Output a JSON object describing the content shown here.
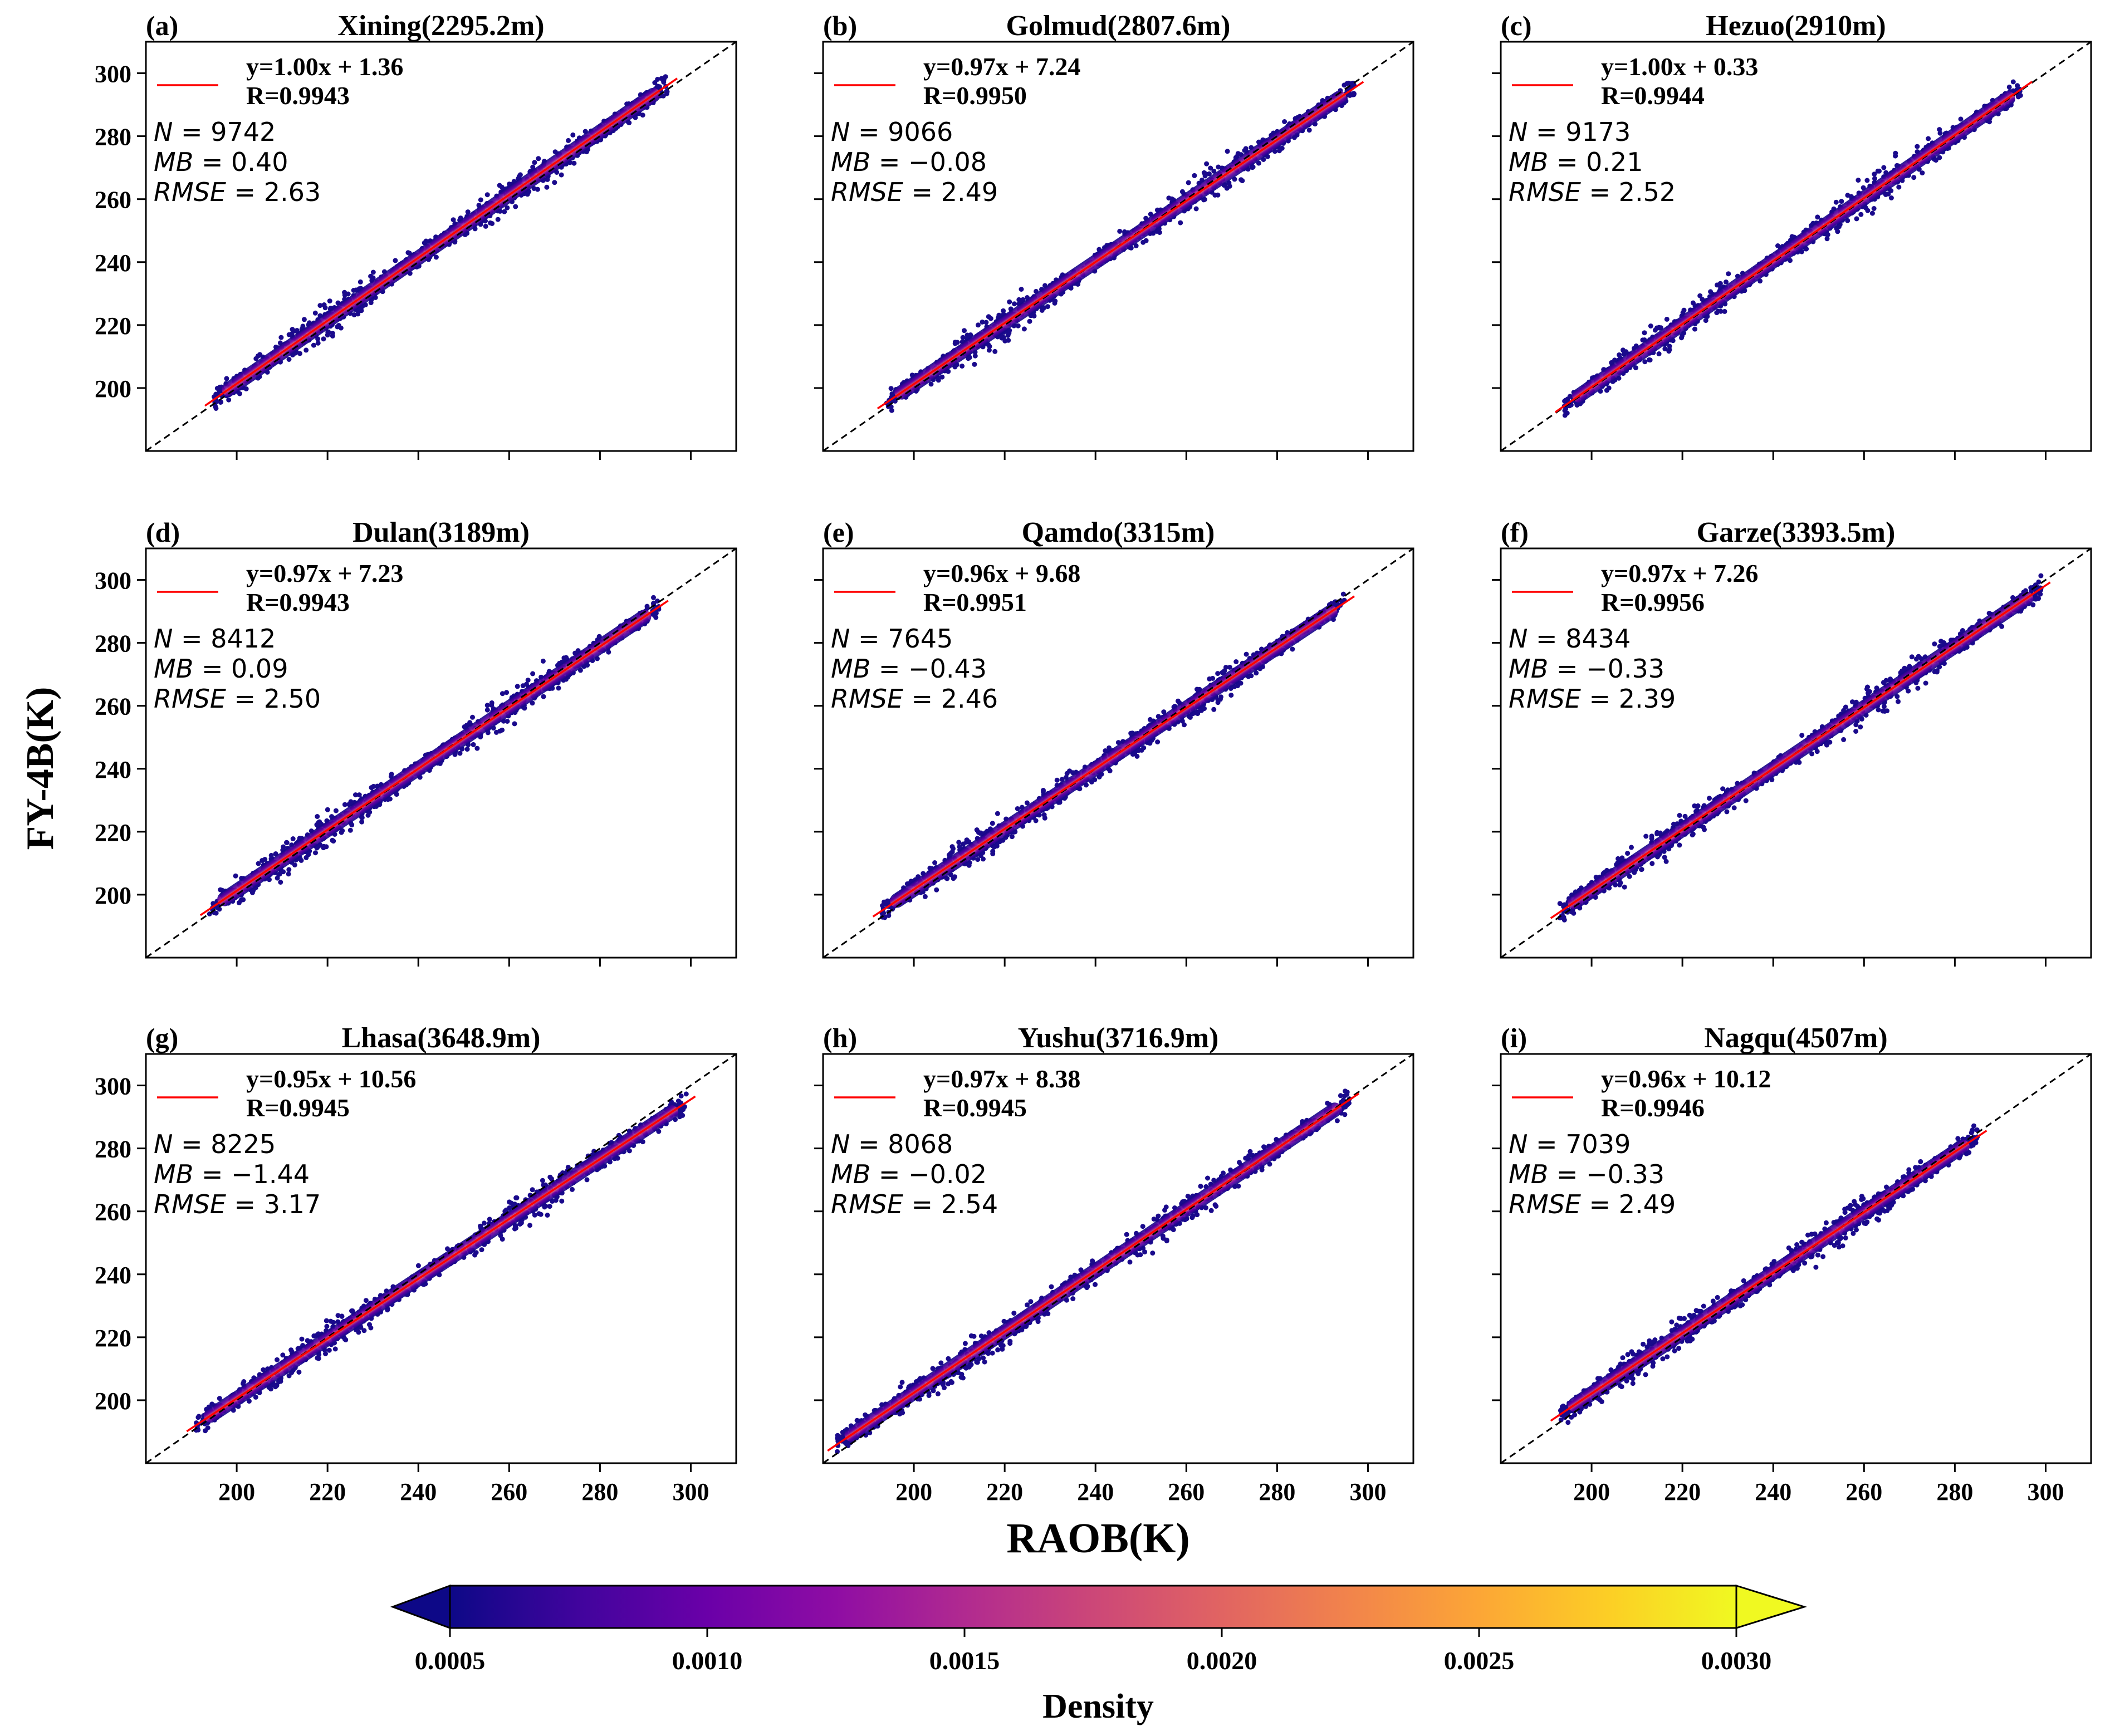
{
  "figure": {
    "y_axis_label": "FY-4B(K)",
    "x_axis_label": "RAOB(K)"
  },
  "colorbar": {
    "label": "Density",
    "colormap": "plasma",
    "range": [
      0.0005,
      0.003
    ],
    "tick_labels": [
      "0.0005",
      "0.0010",
      "0.0015",
      "0.0020",
      "0.0025",
      "0.0030"
    ],
    "extend": "both"
  },
  "chart_data": [
    {
      "type": "scatter",
      "panel": "(a)",
      "title": "Xining(2295.2m)",
      "equation": "y=1.00x + 1.36",
      "r_text": "R=0.9943",
      "n_value": "9742",
      "mb_value": "0.40",
      "rmse_value": "2.63",
      "slope": 1.0,
      "intercept": 1.36,
      "x_range": [
        195,
        295
      ],
      "y_axis_tick_labels": [
        "200",
        "220",
        "240",
        "260",
        "280",
        "300"
      ],
      "x_axis_tick_labels": []
    },
    {
      "type": "scatter",
      "panel": "(b)",
      "title": "Golmud(2807.6m)",
      "equation": "y=0.97x + 7.24",
      "r_text": "R=0.9950",
      "n_value": "9066",
      "mb_value": "−0.08",
      "rmse_value": "2.49",
      "slope": 0.97,
      "intercept": 7.24,
      "x_range": [
        194,
        297
      ],
      "y_axis_tick_labels": [],
      "x_axis_tick_labels": []
    },
    {
      "type": "scatter",
      "panel": "(c)",
      "title": "Hezuo(2910m)",
      "equation": "y=1.00x + 0.33",
      "r_text": "R=0.9944",
      "n_value": "9173",
      "mb_value": "0.21",
      "rmse_value": "2.52",
      "slope": 1.0,
      "intercept": 0.33,
      "x_range": [
        194,
        295
      ],
      "y_axis_tick_labels": [],
      "x_axis_tick_labels": []
    },
    {
      "type": "scatter",
      "panel": "(d)",
      "title": "Dulan(3189m)",
      "equation": "y=0.97x + 7.23",
      "r_text": "R=0.9943",
      "n_value": "8412",
      "mb_value": "0.09",
      "rmse_value": "2.50",
      "slope": 0.97,
      "intercept": 7.23,
      "x_range": [
        194,
        293
      ],
      "y_axis_tick_labels": [
        "200",
        "220",
        "240",
        "260",
        "280",
        "300"
      ],
      "x_axis_tick_labels": []
    },
    {
      "type": "scatter",
      "panel": "(e)",
      "title": "Qamdo(3315m)",
      "equation": "y=0.96x + 9.68",
      "r_text": "R=0.9951",
      "n_value": "7645",
      "mb_value": "−0.43",
      "rmse_value": "2.46",
      "slope": 0.96,
      "intercept": 9.68,
      "x_range": [
        193,
        295
      ],
      "y_axis_tick_labels": [],
      "x_axis_tick_labels": []
    },
    {
      "type": "scatter",
      "panel": "(f)",
      "title": "Garze(3393.5m)",
      "equation": "y=0.97x + 7.26",
      "r_text": "R=0.9956",
      "n_value": "8434",
      "mb_value": "−0.33",
      "rmse_value": "2.39",
      "slope": 0.97,
      "intercept": 7.26,
      "x_range": [
        193,
        299
      ],
      "y_axis_tick_labels": [],
      "x_axis_tick_labels": []
    },
    {
      "type": "scatter",
      "panel": "(g)",
      "title": "Lhasa(3648.9m)",
      "equation": "y=0.95x + 10.56",
      "r_text": "R=0.9945",
      "n_value": "8225",
      "mb_value": "−1.44",
      "rmse_value": "3.17",
      "slope": 0.95,
      "intercept": 10.56,
      "x_range": [
        191,
        299
      ],
      "y_axis_tick_labels": [
        "200",
        "220",
        "240",
        "260",
        "280",
        "300"
      ],
      "x_axis_tick_labels": [
        "200",
        "220",
        "240",
        "260",
        "280",
        "300"
      ]
    },
    {
      "type": "scatter",
      "panel": "(h)",
      "title": "Yushu(3716.9m)",
      "equation": "y=0.97x + 8.38",
      "r_text": "R=0.9945",
      "n_value": "8068",
      "mb_value": "−0.02",
      "rmse_value": "2.54",
      "slope": 0.97,
      "intercept": 8.38,
      "x_range": [
        183,
        296
      ],
      "y_axis_tick_labels": [],
      "x_axis_tick_labels": [
        "200",
        "220",
        "240",
        "260",
        "280",
        "300"
      ]
    },
    {
      "type": "scatter",
      "panel": "(i)",
      "title": "Nagqu(4507m)",
      "equation": "y=0.96x + 10.12",
      "r_text": "R=0.9946",
      "n_value": "7039",
      "mb_value": "−0.33",
      "rmse_value": "2.49",
      "slope": 0.96,
      "intercept": 10.12,
      "x_range": [
        193,
        285
      ],
      "y_axis_tick_labels": [],
      "x_axis_tick_labels": [
        "200",
        "220",
        "240",
        "260",
        "280",
        "300"
      ]
    }
  ],
  "axes": {
    "x_lim": [
      180,
      310
    ],
    "y_lim": [
      180,
      310
    ],
    "ticks": [
      200,
      220,
      240,
      260,
      280,
      300
    ],
    "n_label": "N",
    "mb_label": "MB",
    "rmse_label": "RMSE",
    "equals_sign": "=",
    "one_to_one_line_color": "#000000",
    "fit_line_color": "#ff0000"
  }
}
